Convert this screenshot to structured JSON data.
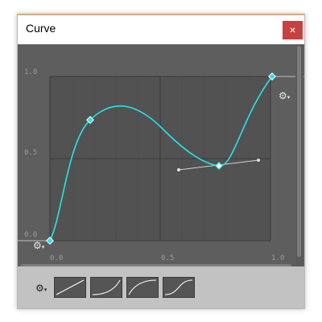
{
  "window": {
    "title": "Curve",
    "close_glyph": "×"
  },
  "axes": {
    "y_labels": [
      "1.0",
      "0.5",
      "0.0"
    ],
    "x_labels": [
      "0.0",
      "0.5",
      "1.0"
    ]
  },
  "icons": {
    "settings": "settings-gear-icon",
    "close": "close-icon"
  },
  "colors": {
    "curve": "#27e3e6",
    "canvas": "#5e5e5e",
    "close_button": "#c94040",
    "title_accent": "#e3a35a"
  },
  "presets": [
    {
      "name": "linear"
    },
    {
      "name": "ease-in"
    },
    {
      "name": "ease-out"
    },
    {
      "name": "ease-in-out"
    }
  ],
  "curve_keys": [
    {
      "t": 0.0,
      "v": 0.0
    },
    {
      "t": 0.18,
      "v": 0.74
    },
    {
      "t": 0.75,
      "v": 0.46
    },
    {
      "t": 1.0,
      "v": 1.0
    }
  ]
}
